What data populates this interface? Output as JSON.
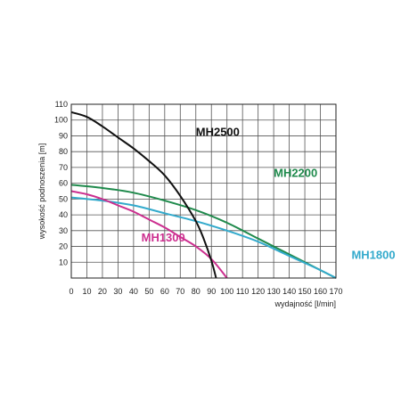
{
  "chart_data": {
    "type": "line",
    "title": "",
    "xlabel": "wydajność [l/min]",
    "ylabel": "wysokość podnoszenia [m]",
    "xlim": [
      0,
      170
    ],
    "ylim": [
      0,
      110
    ],
    "x_ticks": [
      "0",
      "10",
      "20",
      "30",
      "40",
      "50",
      "60",
      "70",
      "80",
      "90",
      "100",
      "110",
      "120",
      "130",
      "140",
      "150",
      "160",
      "170"
    ],
    "y_ticks": [
      "10",
      "20",
      "30",
      "40",
      "50",
      "60",
      "70",
      "80",
      "90",
      "100",
      "110"
    ],
    "grid": true,
    "series": [
      {
        "name": "MH2500",
        "color": "#111111",
        "points": [
          [
            0,
            105
          ],
          [
            10,
            102
          ],
          [
            20,
            96
          ],
          [
            30,
            89
          ],
          [
            40,
            82
          ],
          [
            50,
            74
          ],
          [
            60,
            65
          ],
          [
            70,
            52
          ],
          [
            80,
            36
          ],
          [
            85,
            25
          ],
          [
            90,
            11
          ],
          [
            93,
            0
          ]
        ]
      },
      {
        "name": "MH2200",
        "color": "#1f8a4c",
        "points": [
          [
            0,
            59
          ],
          [
            20,
            57
          ],
          [
            40,
            54
          ],
          [
            60,
            49
          ],
          [
            80,
            43
          ],
          [
            100,
            35
          ],
          [
            120,
            25
          ],
          [
            140,
            15
          ],
          [
            160,
            5
          ],
          [
            170,
            0
          ]
        ]
      },
      {
        "name": "MH1800",
        "color": "#33aacc",
        "points": [
          [
            0,
            51
          ],
          [
            20,
            49
          ],
          [
            40,
            46
          ],
          [
            60,
            41
          ],
          [
            80,
            36
          ],
          [
            100,
            30
          ],
          [
            120,
            23
          ],
          [
            140,
            14
          ],
          [
            160,
            5
          ],
          [
            170,
            0
          ]
        ]
      },
      {
        "name": "MH1300",
        "color": "#cc2f8f",
        "points": [
          [
            0,
            55
          ],
          [
            10,
            53
          ],
          [
            20,
            50
          ],
          [
            30,
            46
          ],
          [
            40,
            42
          ],
          [
            50,
            37
          ],
          [
            60,
            32
          ],
          [
            70,
            26
          ],
          [
            80,
            20
          ],
          [
            90,
            12
          ],
          [
            100,
            0
          ]
        ]
      }
    ]
  }
}
